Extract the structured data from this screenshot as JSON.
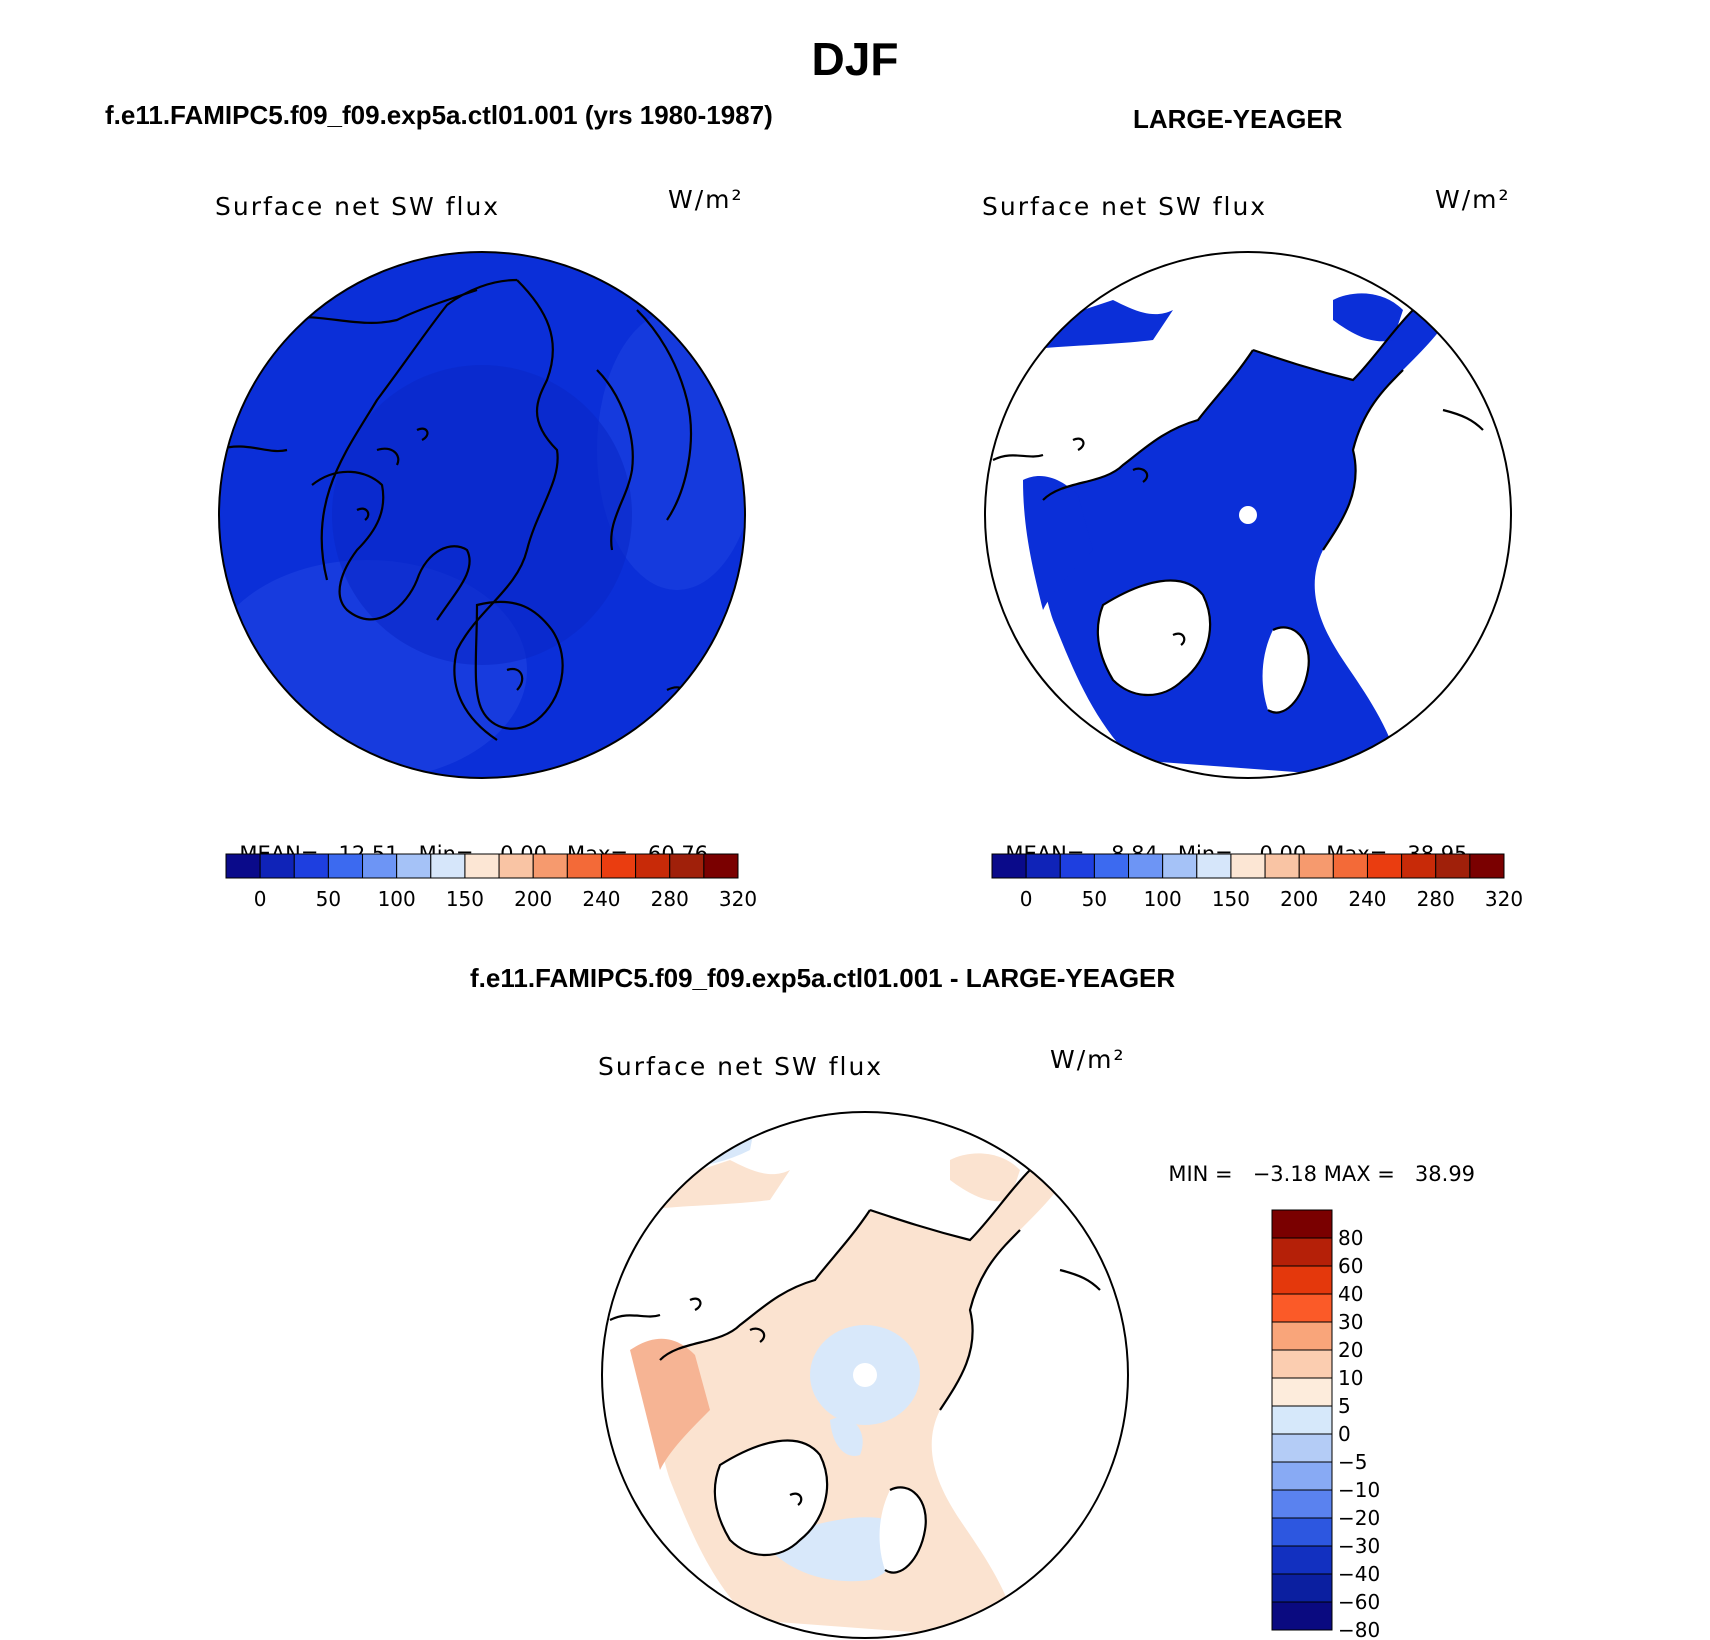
{
  "title": "DJF",
  "panels": [
    {
      "case": "f.e11.FAMIPC5.f09_f09.exp5a.ctl01.001 (yrs 1980-1987)",
      "variable_label": "Surface net SW flux",
      "units": "W/m²",
      "stats": {
        "mean_label": "MEAN=",
        "mean": "12.51",
        "min_label": "Min=",
        "min": "0.00",
        "max_label": "Max=",
        "max": "60.76"
      },
      "fill": "#0b2ed4",
      "land_masked": false
    },
    {
      "case": "LARGE-YEAGER",
      "variable_label": "Surface net SW flux",
      "units": "W/m²",
      "stats": {
        "mean_label": "MEAN=",
        "mean": "8.84",
        "min_label": "Min=",
        "min": "0.00",
        "max_label": "Max=",
        "max": "38.95"
      },
      "fill": "#0b2ed4",
      "land_masked": true
    },
    {
      "case": "f.e11.FAMIPC5.f09_f09.exp5a.ctl01.001 - LARGE-YEAGER",
      "variable_label": "Surface net SW flux",
      "units": "W/m²",
      "stats": {
        "min_label": "MIN =",
        "min": "−3.18",
        "max_label": "MAX =",
        "max": "38.99"
      },
      "fill": "#fbe0cc",
      "land_masked": true
    }
  ],
  "colorbar_absolute": {
    "colors": [
      "#0a0a8a",
      "#0f23b8",
      "#1e3fe0",
      "#3c6af0",
      "#6d95f5",
      "#a5c2f7",
      "#d6e6fa",
      "#fce6d4",
      "#f9c4a4",
      "#f69a6e",
      "#f36a38",
      "#ea3d10",
      "#c82a08",
      "#a0200a",
      "#7a0000"
    ],
    "tick_labels": [
      "0",
      "50",
      "100",
      "150",
      "200",
      "240",
      "280",
      "320"
    ]
  },
  "colorbar_difference": {
    "colors": [
      "#7a0000",
      "#b52008",
      "#e4380c",
      "#fb5a28",
      "#f9a57a",
      "#fbcdb0",
      "#fdecdc",
      "#d6e8fa",
      "#b4ccf6",
      "#88aaf4",
      "#5a82ef",
      "#2d57e0",
      "#1230c0",
      "#0b1fa0",
      "#0a0a80"
    ],
    "tick_labels": [
      "80",
      "60",
      "40",
      "30",
      "20",
      "10",
      "5",
      "0",
      "−5",
      "−10",
      "−20",
      "−30",
      "−40",
      "−60",
      "−80"
    ]
  }
}
